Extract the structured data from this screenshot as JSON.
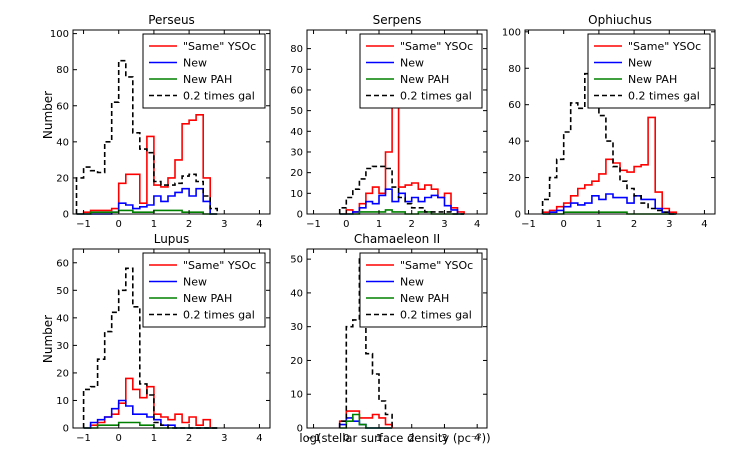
{
  "figure": {
    "xlabel": "log(stellar surface density (pc⁻²))",
    "ylabel": "Number",
    "legend_labels": [
      "\"Same\" YSOc",
      "New",
      "New PAH",
      "0.2 times gal"
    ],
    "colors": {
      "same": "#ff0000",
      "new": "#0000ff",
      "pah": "#008000",
      "gal": "#000000"
    }
  },
  "chart_data": [
    {
      "type": "histogram",
      "title": "Perseus",
      "xlim": [
        -1.3,
        4.3
      ],
      "ylim": [
        0,
        102
      ],
      "xticks": [
        -1,
        0,
        1,
        2,
        3,
        4
      ],
      "yticks": [
        0,
        20,
        40,
        60,
        80,
        100
      ],
      "legend_position": "top-right",
      "bin_edges": [
        -1.2,
        -1.0,
        -0.8,
        -0.6,
        -0.4,
        -0.2,
        0.0,
        0.2,
        0.4,
        0.6,
        0.8,
        1.0,
        1.2,
        1.4,
        1.6,
        1.8,
        2.0,
        2.2,
        2.4,
        2.6,
        2.8
      ],
      "series": [
        {
          "name": "\"Same\" YSOc",
          "key": "same",
          "values": [
            0,
            1,
            2,
            2,
            2,
            3,
            17,
            22,
            22,
            6,
            43,
            16,
            15,
            20,
            30,
            50,
            52,
            55,
            20,
            0
          ]
        },
        {
          "name": "New",
          "key": "new",
          "values": [
            0,
            0,
            0,
            0,
            0,
            1,
            6,
            5,
            3,
            4,
            5,
            10,
            7,
            10,
            12,
            14,
            10,
            14,
            7,
            0
          ]
        },
        {
          "name": "New PAH",
          "key": "pah",
          "values": [
            0,
            0,
            1,
            1,
            1,
            1,
            2,
            2,
            1,
            1,
            1,
            2,
            2,
            2,
            2,
            1,
            1,
            1,
            0,
            0
          ]
        },
        {
          "name": "0.2 times gal",
          "key": "gal",
          "dashed": true,
          "values": [
            20,
            26,
            24,
            23,
            40,
            62,
            85,
            76,
            45,
            36,
            34,
            18,
            16,
            16,
            17,
            21,
            22,
            18,
            10,
            3
          ]
        }
      ]
    },
    {
      "type": "histogram",
      "title": "Serpens",
      "xlim": [
        -1.2,
        4.3
      ],
      "ylim": [
        0,
        89
      ],
      "xticks": [
        -1,
        0,
        1,
        2,
        3,
        4
      ],
      "yticks": [
        0,
        10,
        20,
        30,
        40,
        50,
        60,
        70,
        80
      ],
      "legend_position": "top-right",
      "bin_edges": [
        -0.2,
        0.0,
        0.2,
        0.4,
        0.6,
        0.8,
        1.0,
        1.2,
        1.4,
        1.6,
        1.8,
        2.0,
        2.2,
        2.4,
        2.6,
        2.8,
        3.0,
        3.2,
        3.4,
        3.6
      ],
      "series": [
        {
          "name": "\"Same\" YSOc",
          "key": "same",
          "values": [
            0,
            2,
            1,
            5,
            10,
            13,
            10,
            30,
            53,
            13,
            14,
            15,
            12,
            14,
            12,
            8,
            10,
            3,
            1
          ]
        },
        {
          "name": "New",
          "key": "new",
          "values": [
            0,
            0,
            1,
            3,
            6,
            5,
            9,
            12,
            6,
            10,
            6,
            8,
            6,
            8,
            9,
            8,
            4,
            2,
            0
          ]
        },
        {
          "name": "New PAH",
          "key": "pah",
          "values": [
            0,
            0,
            0,
            1,
            1,
            1,
            1,
            2,
            1,
            1,
            0,
            0,
            1,
            1,
            0,
            0,
            0,
            0,
            0
          ]
        },
        {
          "name": "0.2 times gal",
          "key": "gal",
          "dashed": true,
          "values": [
            3,
            8,
            12,
            17,
            22,
            23,
            23,
            22,
            13,
            8,
            5,
            3,
            3,
            1,
            1,
            1,
            1,
            0,
            0
          ]
        }
      ]
    },
    {
      "type": "histogram",
      "title": "Ophiuchus",
      "xlim": [
        -1.1,
        4.3
      ],
      "ylim": [
        0,
        101
      ],
      "xticks": [
        -1,
        0,
        1,
        2,
        3,
        4
      ],
      "yticks": [
        0,
        20,
        40,
        60,
        80,
        100
      ],
      "legend_position": "top-right",
      "bin_edges": [
        -0.6,
        -0.4,
        -0.2,
        0.0,
        0.2,
        0.4,
        0.6,
        0.8,
        1.0,
        1.2,
        1.4,
        1.6,
        1.8,
        2.0,
        2.2,
        2.4,
        2.6,
        2.8,
        3.0,
        3.2
      ],
      "series": [
        {
          "name": "\"Same\" YSOc",
          "key": "same",
          "values": [
            1,
            2,
            4,
            6,
            10,
            14,
            16,
            18,
            22,
            30,
            28,
            24,
            23,
            26,
            27,
            53,
            12,
            3,
            1
          ]
        },
        {
          "name": "New",
          "key": "new",
          "values": [
            0,
            1,
            2,
            4,
            6,
            5,
            6,
            10,
            8,
            11,
            9,
            9,
            6,
            10,
            8,
            8,
            3,
            1,
            0
          ]
        },
        {
          "name": "New PAH",
          "key": "pah",
          "values": [
            0,
            0,
            0,
            1,
            1,
            1,
            1,
            1,
            1,
            1,
            1,
            1,
            0,
            0,
            0,
            0,
            0,
            0,
            0
          ]
        },
        {
          "name": "0.2 times gal",
          "key": "gal",
          "dashed": true,
          "values": [
            8,
            20,
            30,
            45,
            61,
            58,
            77,
            94,
            54,
            40,
            26,
            18,
            14,
            10,
            6,
            3,
            2,
            1,
            0
          ]
        }
      ]
    },
    {
      "type": "histogram",
      "title": "Lupus",
      "xlim": [
        -1.3,
        4.3
      ],
      "ylim": [
        0,
        65
      ],
      "xticks": [
        -1,
        0,
        1,
        2,
        3,
        4
      ],
      "yticks": [
        0,
        10,
        20,
        30,
        40,
        50,
        60
      ],
      "legend_position": "top-right",
      "bin_edges": [
        -1.0,
        -0.8,
        -0.6,
        -0.4,
        -0.2,
        0.0,
        0.2,
        0.4,
        0.6,
        0.8,
        1.0,
        1.2,
        1.4,
        1.6,
        1.8,
        2.0,
        2.2,
        2.4,
        2.6,
        2.8
      ],
      "series": [
        {
          "name": "\"Same\" YSOc",
          "key": "same",
          "values": [
            0,
            1,
            2,
            4,
            5,
            9,
            18,
            14,
            11,
            15,
            5,
            4,
            3,
            5,
            2,
            4,
            1,
            3,
            0
          ]
        },
        {
          "name": "New",
          "key": "new",
          "values": [
            0,
            2,
            3,
            4,
            7,
            10,
            8,
            5,
            5,
            4,
            3,
            1,
            1,
            0,
            0,
            0,
            0,
            0,
            0
          ]
        },
        {
          "name": "New PAH",
          "key": "pah",
          "values": [
            0,
            0,
            1,
            1,
            1,
            2,
            2,
            2,
            1,
            1,
            0,
            0,
            0,
            0,
            0,
            0,
            0,
            0,
            0
          ]
        },
        {
          "name": "0.2 times gal",
          "key": "gal",
          "dashed": true,
          "values": [
            14,
            15,
            25,
            35,
            42,
            50,
            58,
            44,
            16,
            12,
            2,
            1,
            0,
            0,
            0,
            0,
            0,
            0,
            0
          ]
        }
      ]
    },
    {
      "type": "histogram",
      "title": "Chamaeleon II",
      "xlim": [
        -1.2,
        4.3
      ],
      "ylim": [
        0,
        53
      ],
      "xticks": [
        -1,
        0,
        1,
        2,
        3,
        4
      ],
      "yticks": [
        0,
        10,
        20,
        30,
        40,
        50
      ],
      "legend_position": "top-right",
      "bin_edges": [
        -0.2,
        0.0,
        0.2,
        0.4,
        0.6,
        0.8,
        1.0,
        1.2,
        1.4
      ],
      "series": [
        {
          "name": "\"Same\" YSOc",
          "key": "same",
          "values": [
            2,
            5,
            5,
            3,
            3,
            4,
            3,
            1
          ]
        },
        {
          "name": "New",
          "key": "new",
          "values": [
            1,
            3,
            2,
            1,
            0,
            0,
            0,
            0
          ]
        },
        {
          "name": "New PAH",
          "key": "pah",
          "values": [
            0,
            2,
            4,
            1,
            0,
            0,
            0,
            0
          ]
        },
        {
          "name": "0.2 times gal",
          "key": "gal",
          "dashed": true,
          "values": [
            2,
            30,
            32,
            50,
            22,
            16,
            8,
            4
          ]
        }
      ]
    }
  ]
}
